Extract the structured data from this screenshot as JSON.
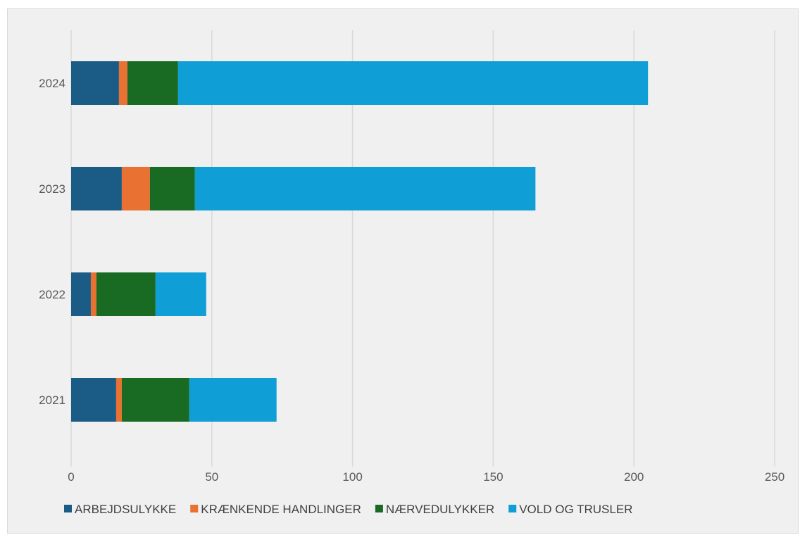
{
  "chart_data": {
    "type": "bar",
    "orientation": "horizontal",
    "stacked": true,
    "title": "",
    "xlabel": "",
    "ylabel": "",
    "categories": [
      "2024",
      "2023",
      "2022",
      "2021"
    ],
    "series": [
      {
        "name": "ARBEJDSULYKKE",
        "color": "#1a5c85",
        "values": [
          17,
          18,
          7,
          16
        ]
      },
      {
        "name": "KRÆNKENDE HANDLINGER",
        "color": "#e97132",
        "values": [
          3,
          10,
          2,
          2
        ]
      },
      {
        "name": "NÆRVEDULYKKER",
        "color": "#196b24",
        "values": [
          18,
          16,
          21,
          24
        ]
      },
      {
        "name": "VOLD OG TRUSLER",
        "color": "#0f9ed5",
        "values": [
          167,
          121,
          18,
          31
        ]
      }
    ],
    "xlim": [
      0,
      250
    ],
    "xticks": [
      "0",
      "50",
      "100",
      "150",
      "200",
      "250"
    ],
    "grid": "vertical",
    "legend": "bottom"
  }
}
